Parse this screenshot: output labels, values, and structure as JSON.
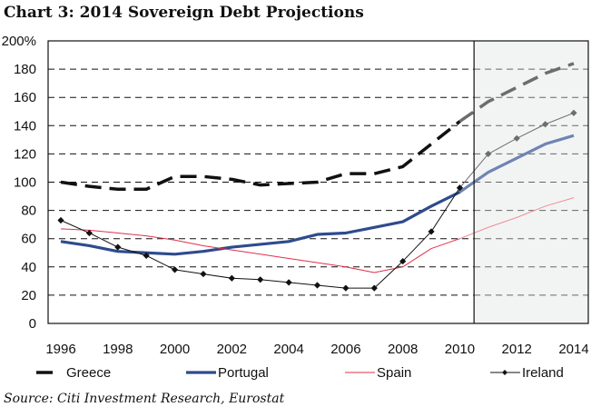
{
  "title": "Chart 3:  2014 Sovereign Debt Projections",
  "source": "Source: Citi Investment Research, Eurostat",
  "chart_data": {
    "type": "line",
    "title": "Chart 3:  2014 Sovereign Debt Projections",
    "xlabel": "",
    "ylabel": "",
    "x": [
      1996,
      1997,
      1998,
      1999,
      2000,
      2001,
      2002,
      2003,
      2004,
      2005,
      2006,
      2007,
      2008,
      2009,
      2010,
      2011,
      2012,
      2013,
      2014
    ],
    "xlim": [
      1996,
      2014
    ],
    "ylim": [
      0,
      200
    ],
    "x_ticks": [
      "1996",
      "1998",
      "2000",
      "2002",
      "2004",
      "2006",
      "2008",
      "2010",
      "2012",
      "2014"
    ],
    "y_ticks": [
      "0",
      "20",
      "40",
      "60",
      "80",
      "100",
      "120",
      "140",
      "160",
      "180",
      "200%"
    ],
    "grid": "horizontal dashed",
    "projection_start": 2010.5,
    "projection_shading": "#f2f4f4",
    "legend_position": "bottom",
    "series": [
      {
        "name": "Greece",
        "style": "dashed",
        "color": "#111111",
        "projection_color": "#6d6d6d",
        "values": [
          100,
          97,
          95,
          95,
          104,
          104,
          102,
          98,
          99,
          100,
          106,
          106,
          111,
          127,
          143,
          157,
          167,
          177,
          184
        ]
      },
      {
        "name": "Portugal",
        "style": "solid-thick",
        "color": "#2f4b8c",
        "projection_color": "#6f84b4",
        "values": [
          58,
          55,
          51,
          50,
          49,
          51,
          54,
          56,
          58,
          63,
          64,
          68,
          72,
          83,
          93,
          107,
          117,
          127,
          133
        ]
      },
      {
        "name": "Spain",
        "style": "solid-thin",
        "color": "#e0304a",
        "projection_color": "#ef8d98",
        "values": [
          67,
          66,
          64,
          62,
          59,
          55,
          52,
          49,
          46,
          43,
          40,
          36,
          40,
          53,
          60,
          68,
          75,
          83,
          89
        ]
      },
      {
        "name": "Ireland",
        "style": "solid-marker",
        "color": "#111111",
        "projection_color": "#6d6d6d",
        "values": [
          73,
          64,
          54,
          48,
          38,
          35,
          32,
          31,
          29,
          27,
          25,
          25,
          44,
          65,
          96,
          120,
          131,
          141,
          149
        ]
      }
    ]
  }
}
